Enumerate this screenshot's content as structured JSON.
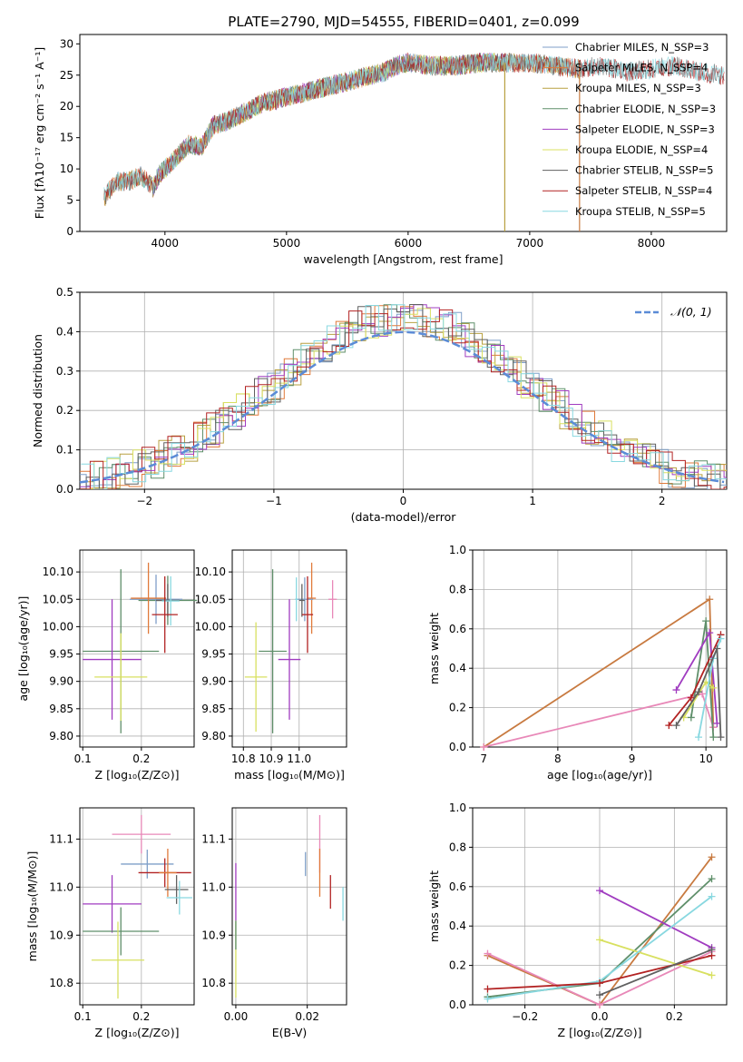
{
  "title": "PLATE=2790, MJD=54555, FIBERID=0401, z=0.099",
  "colors": {
    "c1": "#7f9fc8",
    "c2": "#e07a3a",
    "c3": "#b8a040",
    "c4": "#5f8f6a",
    "c5": "#a03cc0",
    "c6": "#d8e060",
    "c7": "#606060",
    "c8": "#b22222",
    "c9": "#88d8e0",
    "c10": "#c87a40",
    "c11": "#e888b8",
    "gauss": "#5b8bd6"
  },
  "chart_data": [
    {
      "id": "spectrum",
      "type": "line",
      "xlabel": "wavelength [Angstrom, rest frame]",
      "ylabel": "Flux [fλ10⁻¹⁷ erg cm⁻² s⁻¹ A⁻¹]",
      "xlim": [
        3300,
        8620
      ],
      "ylim": [
        0,
        31.5
      ],
      "xticks": [
        4000,
        5000,
        6000,
        7000,
        8000
      ],
      "yticks": [
        0,
        5,
        10,
        15,
        20,
        25,
        30
      ],
      "grid": false,
      "legend_position": "upper right",
      "series": [
        {
          "name": "Chabrier MILES, N_SSP=3",
          "color_key": "c1",
          "range": [
            3500,
            7420
          ]
        },
        {
          "name": "Salpeter MILES, N_SSP=4",
          "color_key": "c2",
          "range": [
            3500,
            7420
          ]
        },
        {
          "name": "Kroupa MILES, N_SSP=3",
          "color_key": "c3",
          "range": [
            3500,
            7420
          ]
        },
        {
          "name": "Chabrier ELODIE, N_SSP=3",
          "color_key": "c4",
          "range": [
            3900,
            6800
          ]
        },
        {
          "name": "Salpeter ELODIE, N_SSP=3",
          "color_key": "c5",
          "range": [
            3900,
            6800
          ]
        },
        {
          "name": "Kroupa ELODIE, N_SSP=4",
          "color_key": "c6",
          "range": [
            3900,
            6800
          ]
        },
        {
          "name": "Chabrier STELIB, N_SSP=5",
          "color_key": "c7",
          "range": [
            3500,
            8600
          ]
        },
        {
          "name": "Salpeter STELIB, N_SSP=4",
          "color_key": "c8",
          "range": [
            3500,
            8600
          ]
        },
        {
          "name": "Kroupa STELIB, N_SSP=5",
          "color_key": "c9",
          "range": [
            3500,
            8600
          ]
        }
      ],
      "anchors": [
        [
          3400,
          5.5
        ],
        [
          3500,
          5.5
        ],
        [
          3600,
          8
        ],
        [
          3700,
          8
        ],
        [
          3800,
          9
        ],
        [
          3900,
          7
        ],
        [
          3950,
          9
        ],
        [
          4000,
          10
        ],
        [
          4100,
          12
        ],
        [
          4200,
          14
        ],
        [
          4300,
          13.5
        ],
        [
          4400,
          17
        ],
        [
          4500,
          17.5
        ],
        [
          4600,
          18.5
        ],
        [
          4700,
          19.5
        ],
        [
          4800,
          20.5
        ],
        [
          4900,
          21
        ],
        [
          5000,
          21.5
        ],
        [
          5100,
          22
        ],
        [
          5200,
          22.5
        ],
        [
          5400,
          23.5
        ],
        [
          5600,
          24.5
        ],
        [
          5800,
          25.5
        ],
        [
          5900,
          26.5
        ],
        [
          6000,
          27
        ],
        [
          6200,
          26.5
        ],
        [
          6400,
          26.5
        ],
        [
          6600,
          27
        ],
        [
          6800,
          27
        ],
        [
          7000,
          27
        ],
        [
          7200,
          26.5
        ],
        [
          7400,
          26
        ],
        [
          7600,
          26.5
        ],
        [
          7800,
          25.5
        ],
        [
          8000,
          26
        ],
        [
          8200,
          26.5
        ],
        [
          8400,
          25.5
        ],
        [
          8600,
          25
        ]
      ]
    },
    {
      "id": "residuals",
      "type": "histogram",
      "xlabel": "(data-model)/error",
      "ylabel": "Normed distribution",
      "xlim": [
        -2.5,
        2.5
      ],
      "ylim": [
        0,
        0.5
      ],
      "xticks": [
        -2,
        -1,
        0,
        1,
        2
      ],
      "yticks": [
        0.0,
        0.1,
        0.2,
        0.3,
        0.4,
        0.5
      ],
      "grid": true,
      "legend": [
        "𝒩(0, 1)"
      ],
      "legend_position": "upper right",
      "bin_width": 0.1
    },
    {
      "id": "age_vs_Z",
      "type": "scatter",
      "xlabel": "Z [log₁₀(Z/Z⊙)]",
      "ylabel": "age  [log₁₀(age/yr)]",
      "xlim": [
        0.095,
        0.29
      ],
      "ylim": [
        9.78,
        10.14
      ],
      "xticks": [
        0.1,
        0.2
      ],
      "yticks": [
        9.8,
        9.85,
        9.9,
        9.95,
        10.0,
        10.05,
        10.1
      ],
      "grid": true,
      "points": [
        {
          "x": 0.245,
          "y": 10.048,
          "xerr": 0.05,
          "yerr": 0.045,
          "color_key": "c4"
        },
        {
          "x": 0.225,
          "y": 10.05,
          "xerr": 0.045,
          "yerr": 0.045,
          "color_key": "c1"
        },
        {
          "x": 0.212,
          "y": 10.052,
          "xerr": 0.03,
          "yerr": 0.065,
          "color_key": "c2"
        },
        {
          "x": 0.245,
          "y": 10.048,
          "xerr": 0.02,
          "yerr": 0.03,
          "color_key": "c7"
        },
        {
          "x": 0.25,
          "y": 10.047,
          "xerr": 0.015,
          "yerr": 0.045,
          "color_key": "c9"
        },
        {
          "x": 0.24,
          "y": 10.022,
          "xerr": 0.022,
          "yerr": 0.07,
          "color_key": "c8"
        },
        {
          "x": 0.165,
          "y": 9.955,
          "xerr": 0.065,
          "yerr": 0.15,
          "color_key": "c4"
        },
        {
          "x": 0.15,
          "y": 9.94,
          "xerr": 0.05,
          "yerr": 0.11,
          "color_key": "c5"
        },
        {
          "x": 0.165,
          "y": 9.908,
          "xerr": 0.045,
          "yerr": 0.08,
          "color_key": "c6"
        }
      ]
    },
    {
      "id": "age_vs_mass",
      "type": "scatter",
      "xlabel": "mass [log₁₀(M/M⊙)]",
      "ylabel": "",
      "xlim": [
        10.76,
        11.17
      ],
      "ylim": [
        9.78,
        10.14
      ],
      "xticks": [
        10.8,
        10.9,
        11.0
      ],
      "yticks": [
        9.8,
        9.85,
        9.9,
        9.95,
        10.0,
        10.05,
        10.1
      ],
      "grid": true,
      "points": [
        {
          "x": 11.045,
          "y": 10.052,
          "xerr": 0.015,
          "yerr": 0.065,
          "color_key": "c2"
        },
        {
          "x": 11.02,
          "y": 10.05,
          "xerr": 0.03,
          "yerr": 0.04,
          "color_key": "c1"
        },
        {
          "x": 11.01,
          "y": 10.048,
          "xerr": 0.01,
          "yerr": 0.03,
          "color_key": "c7"
        },
        {
          "x": 10.99,
          "y": 10.05,
          "xerr": 0.005,
          "yerr": 0.04,
          "color_key": "c9"
        },
        {
          "x": 11.12,
          "y": 10.05,
          "xerr": 0.015,
          "yerr": 0.035,
          "color_key": "c11"
        },
        {
          "x": 11.03,
          "y": 10.022,
          "xerr": 0.02,
          "yerr": 0.07,
          "color_key": "c8"
        },
        {
          "x": 10.905,
          "y": 9.955,
          "xerr": 0.05,
          "yerr": 0.15,
          "color_key": "c4"
        },
        {
          "x": 10.965,
          "y": 9.94,
          "xerr": 0.04,
          "yerr": 0.11,
          "color_key": "c5"
        },
        {
          "x": 10.845,
          "y": 9.908,
          "xerr": 0.04,
          "yerr": 0.1,
          "color_key": "c6"
        }
      ]
    },
    {
      "id": "weight_vs_age",
      "type": "line",
      "xlabel": "age  [log₁₀(age/yr)]",
      "ylabel": "mass weight",
      "xlim": [
        6.85,
        10.28
      ],
      "ylim": [
        0,
        1.0
      ],
      "xticks": [
        7,
        8,
        9,
        10
      ],
      "yticks": [
        0.0,
        0.2,
        0.4,
        0.6,
        0.8,
        1.0
      ],
      "grid": true,
      "series": [
        {
          "color_key": "c10",
          "points": [
            [
              7.0,
              0.0
            ],
            [
              10.05,
              0.75
            ],
            [
              10.1,
              0.1
            ]
          ]
        },
        {
          "color_key": "c11",
          "points": [
            [
              7.0,
              0.0
            ],
            [
              9.95,
              0.27
            ],
            [
              10.1,
              0.1
            ]
          ]
        },
        {
          "color_key": "c4",
          "points": [
            [
              9.8,
              0.15
            ],
            [
              10.0,
              0.64
            ],
            [
              10.1,
              0.05
            ]
          ]
        },
        {
          "color_key": "c5",
          "points": [
            [
              9.6,
              0.29
            ],
            [
              10.05,
              0.58
            ],
            [
              10.15,
              0.12
            ]
          ]
        },
        {
          "color_key": "c8",
          "points": [
            [
              9.5,
              0.11
            ],
            [
              9.8,
              0.25
            ],
            [
              10.2,
              0.57
            ]
          ]
        },
        {
          "color_key": "c6",
          "points": [
            [
              9.7,
              0.15
            ],
            [
              10.0,
              0.33
            ],
            [
              10.1,
              0.3
            ]
          ]
        },
        {
          "color_key": "c9",
          "points": [
            [
              9.9,
              0.05
            ],
            [
              10.1,
              0.45
            ],
            [
              10.2,
              0.55
            ]
          ]
        },
        {
          "color_key": "c7",
          "points": [
            [
              9.6,
              0.11
            ],
            [
              9.9,
              0.28
            ],
            [
              10.15,
              0.5
            ],
            [
              10.2,
              0.05
            ]
          ]
        }
      ]
    },
    {
      "id": "mass_vs_Z",
      "type": "scatter",
      "xlabel": "Z [log₁₀(Z/Z⊙)]",
      "ylabel": "mass [log₁₀(M/M⊙)]",
      "xlim": [
        0.095,
        0.29
      ],
      "ylim": [
        10.755,
        11.165
      ],
      "xticks": [
        0.1,
        0.2
      ],
      "yticks": [
        10.8,
        10.9,
        11.0,
        11.1
      ],
      "grid": true,
      "points": [
        {
          "x": 0.2,
          "y": 11.11,
          "xerr": 0.05,
          "yerr": 0.04,
          "color_key": "c11"
        },
        {
          "x": 0.21,
          "y": 11.048,
          "xerr": 0.045,
          "yerr": 0.03,
          "color_key": "c1"
        },
        {
          "x": 0.24,
          "y": 11.03,
          "xerr": 0.045,
          "yerr": 0.03,
          "color_key": "c8"
        },
        {
          "x": 0.245,
          "y": 11.03,
          "xerr": 0.015,
          "yerr": 0.05,
          "color_key": "c2"
        },
        {
          "x": 0.26,
          "y": 10.995,
          "xerr": 0.02,
          "yerr": 0.03,
          "color_key": "c7"
        },
        {
          "x": 0.265,
          "y": 10.978,
          "xerr": 0.022,
          "yerr": 0.035,
          "color_key": "c9"
        },
        {
          "x": 0.15,
          "y": 10.965,
          "xerr": 0.05,
          "yerr": 0.06,
          "color_key": "c5"
        },
        {
          "x": 0.165,
          "y": 10.908,
          "xerr": 0.065,
          "yerr": 0.05,
          "color_key": "c4"
        },
        {
          "x": 0.16,
          "y": 10.848,
          "xerr": 0.045,
          "yerr": 0.08,
          "color_key": "c6"
        }
      ]
    },
    {
      "id": "mass_vs_EBV",
      "type": "scatter",
      "xlabel": "E(B-V)",
      "ylabel": "",
      "xlim": [
        -0.001,
        0.031
      ],
      "ylim": [
        10.755,
        11.165
      ],
      "xticks": [
        0.0,
        0.02
      ],
      "yticks": [
        10.8,
        10.9,
        11.0,
        11.1
      ],
      "grid": true,
      "points": [
        {
          "x": 0.0,
          "y": 10.99,
          "yerr": 0.06,
          "color_key": "c5"
        },
        {
          "x": 0.0,
          "y": 10.85,
          "yerr": 0.08,
          "color_key": "c6"
        },
        {
          "x": 0.0,
          "y": 10.9,
          "yerr": 0.03,
          "color_key": "c4"
        },
        {
          "x": 0.0195,
          "y": 11.048,
          "yerr": 0.025,
          "color_key": "c1"
        },
        {
          "x": 0.0235,
          "y": 11.09,
          "yerr": 0.06,
          "color_key": "c11"
        },
        {
          "x": 0.0235,
          "y": 11.03,
          "yerr": 0.05,
          "color_key": "c2"
        },
        {
          "x": 0.0265,
          "y": 10.99,
          "yerr": 0.035,
          "color_key": "c8"
        },
        {
          "x": 0.03,
          "y": 10.965,
          "yerr": 0.035,
          "color_key": "c9"
        }
      ]
    },
    {
      "id": "weight_vs_Z",
      "type": "line",
      "xlabel": "Z [log₁₀(Z/Z⊙)]",
      "ylabel": "mass weight",
      "xlim": [
        -0.34,
        0.34
      ],
      "ylim": [
        0,
        1.0
      ],
      "xticks": [
        -0.2,
        0.0,
        0.2
      ],
      "yticks": [
        0.0,
        0.2,
        0.4,
        0.6,
        0.8,
        1.0
      ],
      "grid": true,
      "series": [
        {
          "color_key": "c10",
          "points": [
            [
              -0.3,
              0.25
            ],
            [
              0.0,
              0.0
            ],
            [
              0.3,
              0.75
            ]
          ]
        },
        {
          "color_key": "c11",
          "points": [
            [
              -0.3,
              0.26
            ],
            [
              0.0,
              0.0
            ],
            [
              0.3,
              0.27
            ]
          ]
        },
        {
          "color_key": "c4",
          "points": [
            [
              -0.3,
              0.04
            ],
            [
              0.0,
              0.11
            ],
            [
              0.3,
              0.64
            ]
          ]
        },
        {
          "color_key": "c5",
          "points": [
            [
              0.0,
              0.58
            ],
            [
              0.3,
              0.29
            ]
          ]
        },
        {
          "color_key": "c6",
          "points": [
            [
              0.0,
              0.33
            ],
            [
              0.3,
              0.15
            ]
          ]
        },
        {
          "color_key": "c9",
          "points": [
            [
              -0.3,
              0.03
            ],
            [
              0.0,
              0.12
            ],
            [
              0.3,
              0.55
            ]
          ]
        },
        {
          "color_key": "c8",
          "points": [
            [
              -0.3,
              0.08
            ],
            [
              0.0,
              0.11
            ],
            [
              0.3,
              0.25
            ]
          ]
        },
        {
          "color_key": "c7",
          "points": [
            [
              0.0,
              0.05
            ],
            [
              0.3,
              0.28
            ]
          ]
        }
      ]
    }
  ]
}
